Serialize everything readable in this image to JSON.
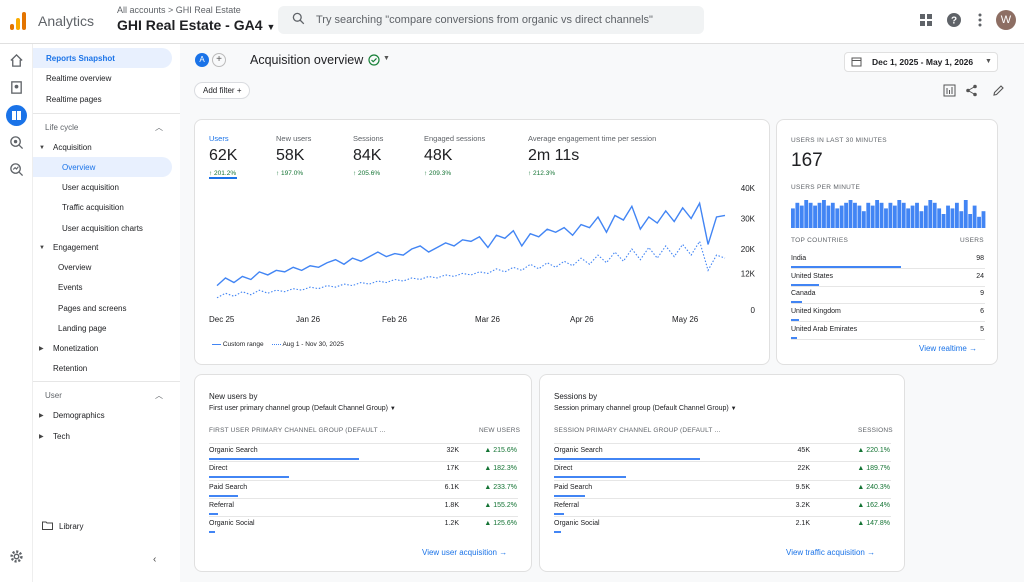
{
  "header": {
    "app_name": "Analytics",
    "breadcrumb": "All accounts > GHI Real Estate",
    "property": "GHI Real Estate - GA4",
    "search_placeholder": "Try searching \"compare conversions from organic vs direct channels\"",
    "avatar_letter": "W"
  },
  "sidebar": {
    "top_items": [
      "Reports Snapshot",
      "Realtime overview",
      "Realtime pages"
    ],
    "lifecycle_label": "Life cycle",
    "acquisition": {
      "label": "Acquisition",
      "items": [
        "Overview",
        "User acquisition",
        "Traffic acquisition",
        "User acquisition charts"
      ]
    },
    "engagement": {
      "label": "Engagement",
      "items": [
        "Overview",
        "Events",
        "Pages and screens",
        "Landing page"
      ]
    },
    "monetization": "Monetization",
    "retention": "Retention",
    "user_label": "User",
    "demographics": "Demographics",
    "tech": "Tech",
    "library": "Library"
  },
  "page": {
    "title": "Acquisition overview",
    "chip": "A",
    "date_range": "Dec 1, 2025 - May 1, 2026",
    "add_filter": "Add filter"
  },
  "metrics": [
    {
      "label": "Users",
      "value": "62K",
      "change": "↑ 201.2%"
    },
    {
      "label": "New users",
      "value": "58K",
      "change": "↑ 197.0%"
    },
    {
      "label": "Sessions",
      "value": "84K",
      "change": "↑ 205.6%"
    },
    {
      "label": "Engaged sessions",
      "value": "48K",
      "change": "↑ 209.3%"
    },
    {
      "label": "Average engagement time per session",
      "value": "2m 11s",
      "change": "↑ 212.3%"
    }
  ],
  "chart_data": {
    "type": "line",
    "x_ticks": [
      "Dec 25",
      "Jan 26",
      "Feb 26",
      "Mar 26",
      "Apr 26",
      "May 26"
    ],
    "y_ticks": [
      "40K",
      "30K",
      "20K",
      "12K",
      "0"
    ],
    "ylim": [
      0,
      40000
    ],
    "legend": [
      "Custom range",
      "Aug 1 - Nov 30, 2025"
    ],
    "series": [
      {
        "name": "Custom range",
        "values": [
          8000,
          10500,
          9000,
          11000,
          10000,
          12500,
          11500,
          13000,
          12500,
          14000,
          13000,
          14500,
          14000,
          15500,
          16500,
          15000,
          17000,
          16000,
          17500,
          19000,
          17500,
          18500,
          18000,
          20000,
          21000,
          19000,
          20500,
          22000,
          21000,
          23000,
          22500,
          24000,
          20500,
          24500,
          23500,
          26000,
          21000,
          25000,
          24000,
          26500,
          25500,
          27000,
          24500,
          28000,
          27000,
          30500,
          25500,
          31000,
          29500,
          34000,
          26500,
          30500,
          28500,
          32500,
          29000,
          33500,
          30000,
          35000,
          21500,
          30500,
          31000
        ]
      },
      {
        "name": "Aug 1 - Nov 30, 2025",
        "values": [
          4000,
          5500,
          4500,
          6000,
          5000,
          6500,
          5500,
          6500,
          6000,
          7000,
          6500,
          7500,
          7000,
          8000,
          7500,
          8500,
          8000,
          9000,
          8500,
          9500,
          9000,
          10000,
          9500,
          10500,
          10000,
          11000,
          10500,
          11500,
          11000,
          12000,
          11500,
          12500,
          12000,
          13500,
          12500,
          14000,
          13000,
          15000,
          13500,
          15500,
          14000,
          16000,
          14500,
          17000,
          15000,
          18000,
          15500,
          19000,
          16000,
          20000,
          16500,
          20500,
          17000,
          21000,
          17500,
          21500,
          18000,
          22500,
          13000,
          18000,
          17000
        ]
      }
    ]
  },
  "realtime": {
    "users_label": "USERS IN LAST 30 MINUTES",
    "users_value": "167",
    "per_minute_label": "USERS PER MINUTE",
    "per_minute": [
      7,
      9,
      8,
      10,
      9,
      8,
      9,
      10,
      8,
      9,
      7,
      8,
      9,
      10,
      9,
      8,
      6,
      9,
      8,
      10,
      9,
      7,
      9,
      8,
      10,
      9,
      7,
      8,
      9,
      6,
      8,
      10,
      9,
      7,
      5,
      8,
      7,
      9,
      6,
      10,
      5,
      8,
      4,
      6
    ],
    "countries_label": "TOP COUNTRIES",
    "countries_col": "USERS",
    "countries": [
      {
        "name": "India",
        "value": "98",
        "frac": 1.0
      },
      {
        "name": "United States",
        "value": "24",
        "frac": 0.25
      },
      {
        "name": "Canada",
        "value": "9",
        "frac": 0.1
      },
      {
        "name": "United Kingdom",
        "value": "6",
        "frac": 0.07
      },
      {
        "name": "United Arab Emirates",
        "value": "5",
        "frac": 0.05
      }
    ],
    "link": "View realtime"
  },
  "new_users_card": {
    "title": "New users by",
    "subtitle": "First user primary channel group (Default Channel Group)",
    "col1": "FIRST USER PRIMARY CHANNEL GROUP (DEFAULT ...",
    "col2": "NEW USERS",
    "rows": [
      {
        "name": "Organic Search",
        "value": "32K",
        "change": "▲ 215.6%",
        "frac": 1.0
      },
      {
        "name": "Direct",
        "value": "17K",
        "change": "▲ 182.3%",
        "frac": 0.53
      },
      {
        "name": "Paid Search",
        "value": "6.1K",
        "change": "▲ 233.7%",
        "frac": 0.19
      },
      {
        "name": "Referral",
        "value": "1.8K",
        "change": "▲ 155.2%",
        "frac": 0.06
      },
      {
        "name": "Organic Social",
        "value": "1.2K",
        "change": "▲ 125.6%",
        "frac": 0.04
      }
    ],
    "link": "View user acquisition"
  },
  "sessions_card": {
    "title": "Sessions by",
    "subtitle": "Session primary channel group (Default Channel Group)",
    "col1": "SESSION PRIMARY CHANNEL GROUP (DEFAULT ...",
    "col2": "SESSIONS",
    "rows": [
      {
        "name": "Organic Search",
        "value": "45K",
        "change": "▲ 220.1%",
        "frac": 1.0
      },
      {
        "name": "Direct",
        "value": "22K",
        "change": "▲ 189.7%",
        "frac": 0.49
      },
      {
        "name": "Paid Search",
        "value": "9.5K",
        "change": "▲ 240.3%",
        "frac": 0.21
      },
      {
        "name": "Referral",
        "value": "3.2K",
        "change": "▲ 162.4%",
        "frac": 0.07
      },
      {
        "name": "Organic Social",
        "value": "2.1K",
        "change": "▲ 147.8%",
        "frac": 0.05
      }
    ],
    "link": "View traffic acquisition"
  },
  "colors": {
    "accent": "#1a73e8",
    "series": "#4285f4",
    "positive": "#137333"
  }
}
